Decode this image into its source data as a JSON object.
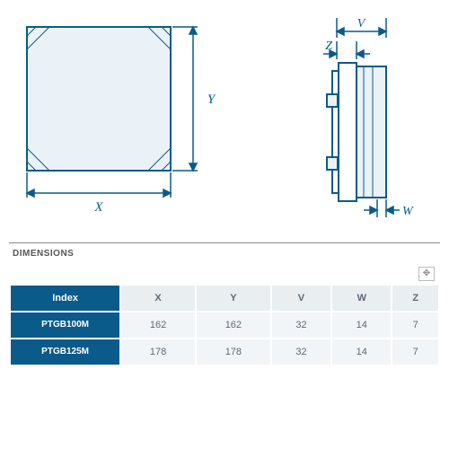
{
  "diagram_colors": {
    "stroke": "#0a5a8a",
    "shape_fill": "#eaf2f7",
    "dim_stroke": "#0a5a8a",
    "hatch": "#0a5a8a"
  },
  "front_view": {
    "label_x": "X",
    "label_y": "Y",
    "label_fontsize": 14
  },
  "side_view": {
    "label_v": "V",
    "label_z": "Z",
    "label_w": "W",
    "label_fontsize": 14
  },
  "table": {
    "section_label": "DIMENSIONS",
    "header_bg": "#0a5a8a",
    "header_fg": "#ffffff",
    "col_head_bg": "#e9eef1",
    "col_head_fg": "#5b6a74",
    "idx_bg": "#0a5a8a",
    "idx_fg": "#ffffff",
    "cell_bg": "#f2f5f7",
    "cell_fg": "#5b6a74",
    "expand_icon": "✥",
    "columns": [
      "Index",
      "X",
      "Y",
      "V",
      "W",
      "Z"
    ],
    "rows": [
      {
        "index": "PTGB100M",
        "values": [
          "162",
          "162",
          "32",
          "14",
          "7"
        ]
      },
      {
        "index": "PTGB125M",
        "values": [
          "178",
          "178",
          "32",
          "14",
          "7"
        ]
      }
    ]
  }
}
